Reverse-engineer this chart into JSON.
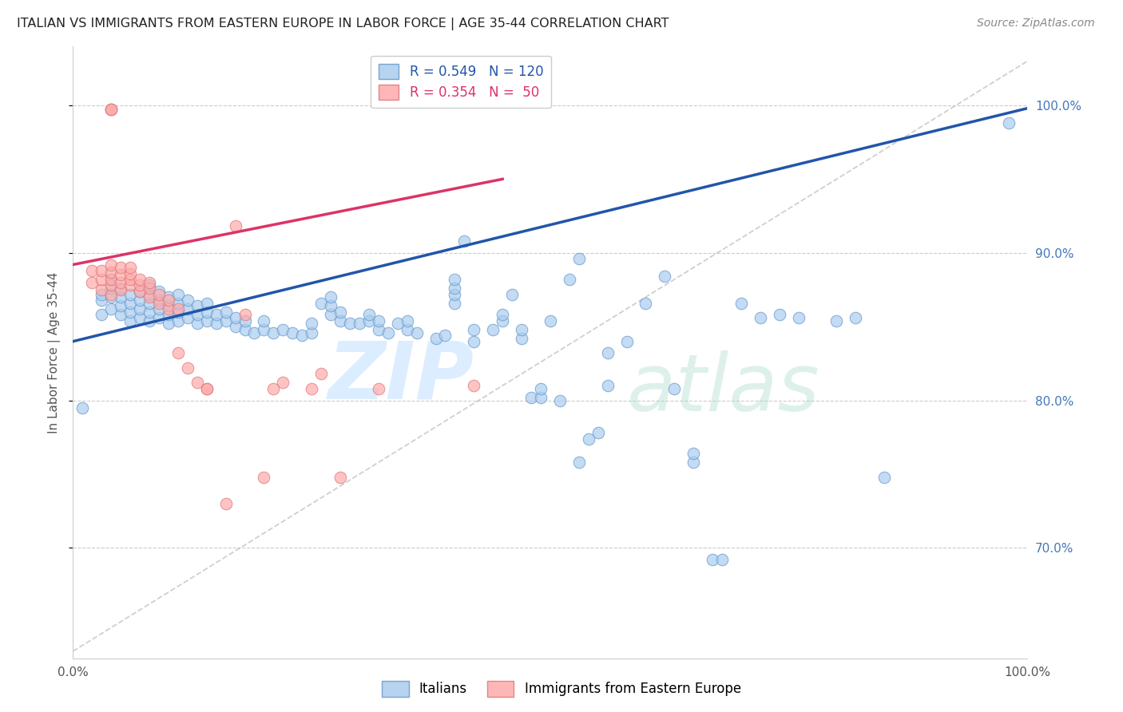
{
  "title": "ITALIAN VS IMMIGRANTS FROM EASTERN EUROPE IN LABOR FORCE | AGE 35-44 CORRELATION CHART",
  "source": "Source: ZipAtlas.com",
  "ylabel": "In Labor Force | Age 35-44",
  "blue_R": 0.549,
  "blue_N": 120,
  "pink_R": 0.354,
  "pink_N": 50,
  "xmin": 0.0,
  "xmax": 1.0,
  "ymin": 0.625,
  "ymax": 1.04,
  "yticks": [
    0.7,
    0.8,
    0.9,
    1.0
  ],
  "xticks": [
    0.0,
    0.25,
    0.5,
    0.75,
    1.0
  ],
  "xtick_labels": [
    "0.0%",
    "",
    "",
    "",
    "100.0%"
  ],
  "ytick_labels": [
    "70.0%",
    "80.0%",
    "90.0%",
    "100.0%"
  ],
  "grid_color": "#cccccc",
  "blue_color": "#aaccee",
  "blue_edge_color": "#6699cc",
  "blue_line_color": "#2255aa",
  "pink_color": "#ffaaaa",
  "pink_edge_color": "#dd7777",
  "pink_line_color": "#dd3366",
  "ref_line_color": "#bbbbbb",
  "title_color": "#222222",
  "source_color": "#888888",
  "right_axis_color": "#4477bb",
  "legend_blue_label": "R = 0.549   N = 120",
  "legend_pink_label": "R = 0.354   N =  50",
  "bottom_legend_blue": "Italians",
  "bottom_legend_pink": "Immigrants from Eastern Europe",
  "blue_scatter": [
    [
      0.01,
      0.795
    ],
    [
      0.03,
      0.858
    ],
    [
      0.03,
      0.868
    ],
    [
      0.03,
      0.872
    ],
    [
      0.04,
      0.862
    ],
    [
      0.04,
      0.87
    ],
    [
      0.04,
      0.876
    ],
    [
      0.04,
      0.882
    ],
    [
      0.05,
      0.858
    ],
    [
      0.05,
      0.864
    ],
    [
      0.05,
      0.87
    ],
    [
      0.05,
      0.876
    ],
    [
      0.06,
      0.854
    ],
    [
      0.06,
      0.86
    ],
    [
      0.06,
      0.866
    ],
    [
      0.06,
      0.872
    ],
    [
      0.07,
      0.856
    ],
    [
      0.07,
      0.862
    ],
    [
      0.07,
      0.868
    ],
    [
      0.07,
      0.874
    ],
    [
      0.08,
      0.854
    ],
    [
      0.08,
      0.86
    ],
    [
      0.08,
      0.866
    ],
    [
      0.08,
      0.872
    ],
    [
      0.08,
      0.878
    ],
    [
      0.09,
      0.856
    ],
    [
      0.09,
      0.862
    ],
    [
      0.09,
      0.868
    ],
    [
      0.09,
      0.874
    ],
    [
      0.1,
      0.852
    ],
    [
      0.1,
      0.858
    ],
    [
      0.1,
      0.864
    ],
    [
      0.1,
      0.87
    ],
    [
      0.11,
      0.854
    ],
    [
      0.11,
      0.86
    ],
    [
      0.11,
      0.866
    ],
    [
      0.11,
      0.872
    ],
    [
      0.12,
      0.856
    ],
    [
      0.12,
      0.862
    ],
    [
      0.12,
      0.868
    ],
    [
      0.13,
      0.852
    ],
    [
      0.13,
      0.858
    ],
    [
      0.13,
      0.864
    ],
    [
      0.14,
      0.854
    ],
    [
      0.14,
      0.86
    ],
    [
      0.14,
      0.866
    ],
    [
      0.15,
      0.852
    ],
    [
      0.15,
      0.858
    ],
    [
      0.16,
      0.854
    ],
    [
      0.16,
      0.86
    ],
    [
      0.17,
      0.85
    ],
    [
      0.17,
      0.856
    ],
    [
      0.18,
      0.848
    ],
    [
      0.18,
      0.854
    ],
    [
      0.19,
      0.846
    ],
    [
      0.2,
      0.848
    ],
    [
      0.2,
      0.854
    ],
    [
      0.21,
      0.846
    ],
    [
      0.22,
      0.848
    ],
    [
      0.23,
      0.846
    ],
    [
      0.24,
      0.844
    ],
    [
      0.25,
      0.846
    ],
    [
      0.25,
      0.852
    ],
    [
      0.26,
      0.866
    ],
    [
      0.27,
      0.858
    ],
    [
      0.27,
      0.864
    ],
    [
      0.27,
      0.87
    ],
    [
      0.28,
      0.854
    ],
    [
      0.28,
      0.86
    ],
    [
      0.29,
      0.852
    ],
    [
      0.3,
      0.852
    ],
    [
      0.31,
      0.854
    ],
    [
      0.31,
      0.858
    ],
    [
      0.32,
      0.848
    ],
    [
      0.32,
      0.854
    ],
    [
      0.33,
      0.846
    ],
    [
      0.34,
      0.852
    ],
    [
      0.35,
      0.848
    ],
    [
      0.35,
      0.854
    ],
    [
      0.36,
      0.846
    ],
    [
      0.38,
      0.842
    ],
    [
      0.39,
      0.844
    ],
    [
      0.4,
      0.866
    ],
    [
      0.4,
      0.872
    ],
    [
      0.4,
      0.876
    ],
    [
      0.4,
      0.882
    ],
    [
      0.41,
      0.908
    ],
    [
      0.42,
      0.84
    ],
    [
      0.42,
      0.848
    ],
    [
      0.44,
      0.848
    ],
    [
      0.45,
      0.854
    ],
    [
      0.45,
      0.858
    ],
    [
      0.46,
      0.872
    ],
    [
      0.47,
      0.842
    ],
    [
      0.47,
      0.848
    ],
    [
      0.48,
      0.802
    ],
    [
      0.49,
      0.802
    ],
    [
      0.49,
      0.808
    ],
    [
      0.5,
      0.854
    ],
    [
      0.51,
      0.8
    ],
    [
      0.52,
      0.882
    ],
    [
      0.53,
      0.758
    ],
    [
      0.53,
      0.896
    ],
    [
      0.54,
      0.774
    ],
    [
      0.55,
      0.778
    ],
    [
      0.56,
      0.81
    ],
    [
      0.56,
      0.832
    ],
    [
      0.58,
      0.84
    ],
    [
      0.6,
      0.866
    ],
    [
      0.62,
      0.884
    ],
    [
      0.63,
      0.808
    ],
    [
      0.65,
      0.758
    ],
    [
      0.65,
      0.764
    ],
    [
      0.67,
      0.692
    ],
    [
      0.68,
      0.692
    ],
    [
      0.7,
      0.866
    ],
    [
      0.72,
      0.856
    ],
    [
      0.74,
      0.858
    ],
    [
      0.76,
      0.856
    ],
    [
      0.8,
      0.854
    ],
    [
      0.82,
      0.856
    ],
    [
      0.85,
      0.748
    ],
    [
      0.98,
      0.988
    ]
  ],
  "pink_scatter": [
    [
      0.02,
      0.88
    ],
    [
      0.02,
      0.888
    ],
    [
      0.03,
      0.875
    ],
    [
      0.03,
      0.882
    ],
    [
      0.03,
      0.888
    ],
    [
      0.04,
      0.872
    ],
    [
      0.04,
      0.878
    ],
    [
      0.04,
      0.882
    ],
    [
      0.04,
      0.887
    ],
    [
      0.04,
      0.892
    ],
    [
      0.04,
      0.997
    ],
    [
      0.04,
      0.997
    ],
    [
      0.04,
      0.997
    ],
    [
      0.05,
      0.875
    ],
    [
      0.05,
      0.88
    ],
    [
      0.05,
      0.885
    ],
    [
      0.05,
      0.89
    ],
    [
      0.06,
      0.878
    ],
    [
      0.06,
      0.882
    ],
    [
      0.06,
      0.886
    ],
    [
      0.06,
      0.89
    ],
    [
      0.07,
      0.874
    ],
    [
      0.07,
      0.878
    ],
    [
      0.07,
      0.882
    ],
    [
      0.08,
      0.87
    ],
    [
      0.08,
      0.876
    ],
    [
      0.08,
      0.88
    ],
    [
      0.09,
      0.866
    ],
    [
      0.09,
      0.872
    ],
    [
      0.1,
      0.862
    ],
    [
      0.1,
      0.868
    ],
    [
      0.11,
      0.832
    ],
    [
      0.11,
      0.862
    ],
    [
      0.12,
      0.822
    ],
    [
      0.13,
      0.812
    ],
    [
      0.14,
      0.808
    ],
    [
      0.14,
      0.808
    ],
    [
      0.16,
      0.73
    ],
    [
      0.17,
      0.918
    ],
    [
      0.18,
      0.858
    ],
    [
      0.2,
      0.748
    ],
    [
      0.21,
      0.808
    ],
    [
      0.22,
      0.812
    ],
    [
      0.25,
      0.808
    ],
    [
      0.26,
      0.818
    ],
    [
      0.28,
      0.748
    ],
    [
      0.32,
      0.808
    ],
    [
      0.42,
      0.81
    ]
  ],
  "blue_line_x": [
    0.0,
    1.0
  ],
  "blue_line_y": [
    0.84,
    0.998
  ],
  "pink_line_x": [
    0.0,
    0.45
  ],
  "pink_line_y": [
    0.892,
    0.95
  ],
  "ref_line_x": [
    0.0,
    1.0
  ],
  "ref_line_y": [
    0.63,
    1.03
  ]
}
